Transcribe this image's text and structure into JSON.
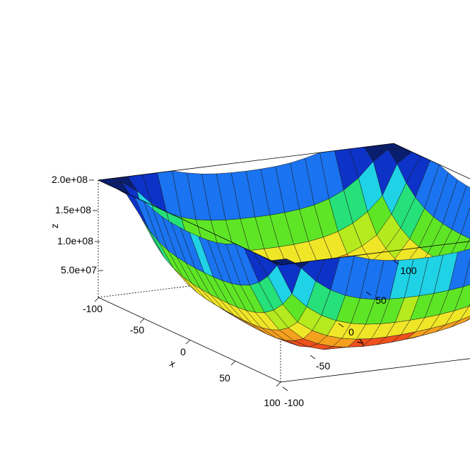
{
  "chart_data": {
    "type": "surface3d",
    "title": "",
    "xlabel": "x",
    "ylabel": "y",
    "zlabel": "z",
    "xlim": [
      -100,
      100
    ],
    "ylim": [
      -100,
      100
    ],
    "zlim": [
      0,
      200000000
    ],
    "x_ticks": [
      -100,
      -50,
      0,
      50,
      100
    ],
    "y_ticks": [
      -100,
      -50,
      0,
      50,
      100
    ],
    "z_ticks": [
      50000000,
      100000000,
      150000000,
      200000000
    ],
    "x_tick_labels": [
      "-100",
      "-50",
      "0",
      "50",
      "100"
    ],
    "y_tick_labels": [
      "-100",
      "-50",
      "0",
      "50",
      "100"
    ],
    "z_tick_labels": [
      "5.0e+07",
      "1.0e+08",
      "1.5e+08",
      "2.0e+08"
    ],
    "grid_size": 21,
    "surface_description_values": {
      "corner_z_approx": [
        200000000,
        200000000,
        200000000,
        200000000
      ],
      "min_z_approx": 0
    },
    "color_ramp": [
      "#0a1e6e",
      "#0d32c8",
      "#1a73f0",
      "#1fd2e6",
      "#26e07a",
      "#5ee626",
      "#b4ea1e",
      "#f0e628",
      "#f5a01e",
      "#f0501e",
      "#c81414"
    ]
  }
}
